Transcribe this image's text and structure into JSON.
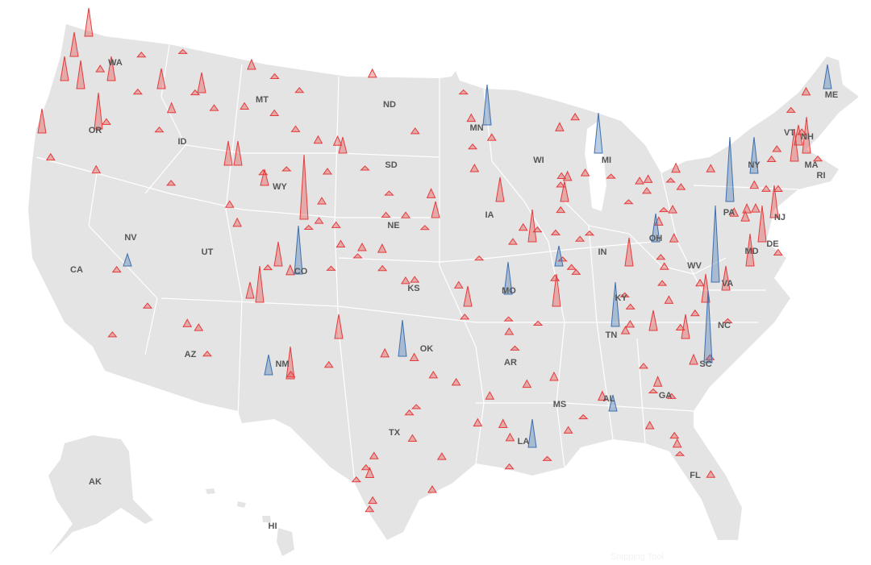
{
  "map": {
    "background": "#ffffff",
    "land_color": "#e4e4e4",
    "border_color": "#ffffff",
    "label_color": "#555555",
    "state_labels": [
      "WA",
      "OR",
      "CA",
      "NV",
      "ID",
      "MT",
      "WY",
      "UT",
      "AZ",
      "NM",
      "CO",
      "ND",
      "SD",
      "NE",
      "KS",
      "OK",
      "TX",
      "MN",
      "IA",
      "MO",
      "AR",
      "LA",
      "MS",
      "AL",
      "GA",
      "FL",
      "SC",
      "NC",
      "TN",
      "KY",
      "IN",
      "OH",
      "WV",
      "VA",
      "PA",
      "NY",
      "VT",
      "NH",
      "ME",
      "MA",
      "RI",
      "NJ",
      "DE",
      "MD",
      "MI",
      "WI",
      "AK",
      "HI"
    ],
    "watermark": "Snipping Tool",
    "spikes": [
      {
        "color": "#e63b3b",
        "value": 35
      },
      {
        "color": "#e63b3b",
        "value": 30
      },
      {
        "color": "#e63b3b",
        "value": 30
      },
      {
        "color": "#e63b3b",
        "value": 35
      },
      {
        "color": "#e63b3b",
        "value": 45
      },
      {
        "color": "#e63b3b",
        "value": 30
      },
      {
        "color": "#e63b3b",
        "value": 30
      },
      {
        "color": "#e63b3b",
        "value": 25
      },
      {
        "color": "#e63b3b",
        "value": 25
      },
      {
        "color": "#e63b3b",
        "value": 30
      },
      {
        "color": "#e63b3b",
        "value": 30
      },
      {
        "color": "#e63b3b",
        "value": 20
      },
      {
        "color": "#e63b3b",
        "value": 80
      },
      {
        "color": "#e63b3b",
        "value": 20
      },
      {
        "color": "#e63b3b",
        "value": 30
      },
      {
        "color": "#e63b3b",
        "value": 45
      },
      {
        "color": "#e63b3b",
        "value": 20
      },
      {
        "color": "#e63b3b",
        "value": 40
      },
      {
        "color": "#e63b3b",
        "value": 40
      },
      {
        "color": "#e63b3b",
        "value": 45
      },
      {
        "color": "#e63b3b",
        "value": 40
      },
      {
        "color": "#e63b3b",
        "value": 40
      },
      {
        "color": "#e63b3b",
        "value": 40
      },
      {
        "color": "#e63b3b",
        "value": 45
      },
      {
        "color": "#e63b3b",
        "value": 35
      },
      {
        "color": "#e63b3b",
        "value": 25
      },
      {
        "color": "#e63b3b",
        "value": 25
      },
      {
        "color": "#e63b3b",
        "value": 40
      },
      {
        "color": "#e63b3b",
        "value": 20
      },
      {
        "color": "#e63b3b",
        "value": 25
      },
      {
        "color": "#e63b3b",
        "value": 30
      },
      {
        "color": "#e63b3b",
        "value": 30
      },
      {
        "color": "#e63b3b",
        "value": 35
      },
      {
        "color": "#e63b3b",
        "value": 30
      },
      {
        "color": "#e63b3b",
        "value": 25
      },
      {
        "color": "#e63b3b",
        "value": 30
      },
      {
        "color": "#3d6fae",
        "value": 50
      },
      {
        "color": "#3d6fae",
        "value": 50
      },
      {
        "color": "#3d6fae",
        "value": 60
      },
      {
        "color": "#3d6fae",
        "value": 45
      },
      {
        "color": "#3d6fae",
        "value": 40
      },
      {
        "color": "#3d6fae",
        "value": 35
      },
      {
        "color": "#3d6fae",
        "value": 95
      },
      {
        "color": "#3d6fae",
        "value": 80
      },
      {
        "color": "#3d6fae",
        "value": 45
      },
      {
        "color": "#3d6fae",
        "value": 30
      },
      {
        "color": "#3d6fae",
        "value": 90
      },
      {
        "color": "#3d6fae",
        "value": 55
      },
      {
        "color": "#3d6fae",
        "value": 25
      },
      {
        "color": "#3d6fae",
        "value": 15
      },
      {
        "color": "#3d6fae",
        "value": 35
      },
      {
        "color": "#3d6fae",
        "value": 25
      },
      {
        "color": "#3d6fae",
        "value": 20
      }
    ],
    "small_color": "#e63b3b",
    "small_spikes": [
      6,
      8,
      5,
      9,
      7,
      12,
      6,
      5,
      10,
      7,
      8,
      6,
      9,
      5,
      11,
      7,
      6,
      8,
      5,
      7,
      9,
      6,
      10,
      8,
      5,
      7,
      6,
      12,
      8,
      6,
      5,
      9,
      7,
      11,
      6,
      8,
      7,
      5,
      10,
      6,
      8,
      9,
      5,
      7,
      6,
      12,
      7,
      8,
      5,
      6,
      10,
      9,
      7,
      6,
      8,
      5,
      11,
      7,
      6,
      9,
      8,
      5,
      7,
      10,
      6,
      8,
      5,
      9,
      7,
      6,
      12,
      8,
      5,
      6,
      7,
      9,
      10,
      6,
      8,
      5,
      7,
      6,
      9,
      8,
      11,
      5,
      7,
      6,
      10,
      8,
      6,
      7,
      5,
      9,
      8,
      12,
      6,
      7,
      5,
      8,
      9,
      6,
      10,
      7,
      5,
      8,
      6,
      9,
      7,
      11,
      6,
      5,
      8,
      7,
      10,
      6,
      9,
      5,
      8,
      7,
      6,
      12,
      8,
      5,
      7,
      9,
      6,
      10,
      8,
      5,
      7,
      6,
      11,
      9,
      8,
      5,
      6,
      7,
      10,
      8,
      6,
      9,
      5,
      7,
      8,
      6,
      12,
      7,
      5,
      9,
      6,
      8,
      10,
      7,
      6,
      5,
      9,
      8,
      7,
      6
    ]
  }
}
